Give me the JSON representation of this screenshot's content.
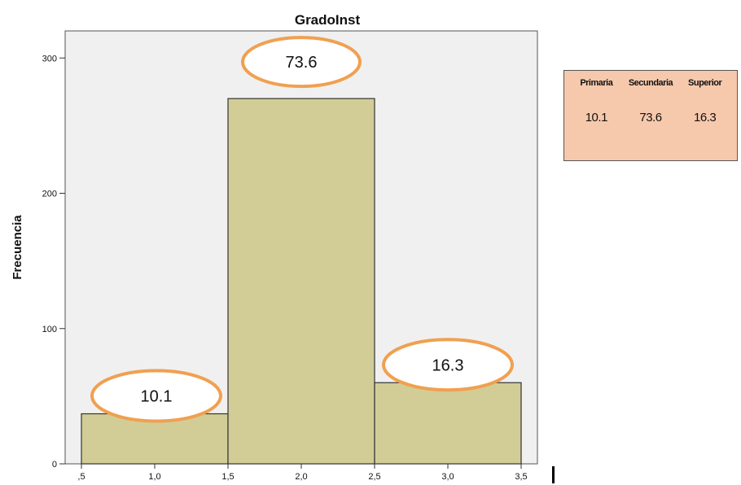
{
  "chart_data": {
    "type": "bar",
    "title": "GradoInst",
    "ylabel": "Frecuencia",
    "xlabel": "",
    "xlim": [
      0.5,
      3.5
    ],
    "ylim": [
      0,
      320
    ],
    "x_ticks": [
      ",5",
      "1,0",
      "1,5",
      "2,0",
      "2,5",
      "3,0",
      "3,5"
    ],
    "x_tick_values": [
      0.5,
      1.0,
      1.5,
      2.0,
      2.5,
      3.0,
      3.5
    ],
    "y_ticks": [
      "0",
      "100",
      "200",
      "300"
    ],
    "y_tick_values": [
      0,
      100,
      200,
      300
    ],
    "bins": [
      [
        0.5,
        1.5
      ],
      [
        1.5,
        2.5
      ],
      [
        2.5,
        3.5
      ]
    ],
    "values": [
      37,
      270,
      60
    ],
    "annotations": [
      "10.1",
      "73.6",
      "16.3"
    ],
    "bar_color": "#d2cd96",
    "plot_bg": "#f0f0f0",
    "ellipse_color": "#f0a050",
    "grid": false
  },
  "side_table": {
    "headers": [
      "Primaria",
      "Secundaria",
      "Superior"
    ],
    "values": [
      "10.1",
      "73.6",
      "16.3"
    ],
    "bg_color": "#f7c9ac"
  }
}
